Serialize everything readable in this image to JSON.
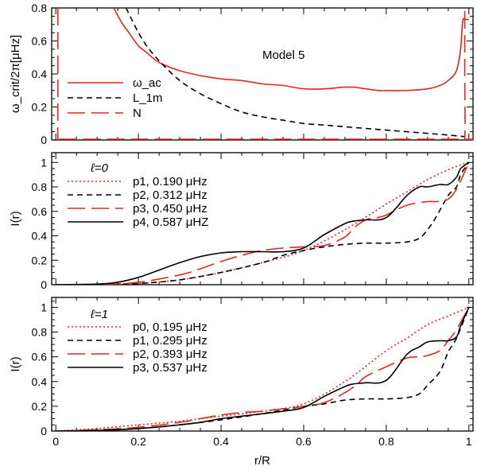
{
  "chart_data": [
    {
      "type": "line",
      "annotation": "Model 5",
      "ylabel": "ω_crit/2π[μHz]",
      "xlim": [
        -0.01,
        1.01
      ],
      "ylim": [
        0,
        0.8
      ],
      "yticks": [
        "0",
        "0.2",
        "0.4",
        "0.6",
        "0.8"
      ],
      "legend_location": "middle-left",
      "series": [
        {
          "name": "ω_ac",
          "color": "#e8251f",
          "dash": "solid",
          "x": [
            0.14,
            0.16,
            0.18,
            0.2,
            0.22,
            0.25,
            0.3,
            0.35,
            0.4,
            0.45,
            0.5,
            0.55,
            0.6,
            0.65,
            0.7,
            0.72,
            0.75,
            0.78,
            0.8,
            0.85,
            0.9,
            0.93,
            0.95,
            0.97,
            0.98,
            0.985,
            0.99,
            1.0
          ],
          "y": [
            0.8,
            0.71,
            0.64,
            0.57,
            0.53,
            0.47,
            0.42,
            0.39,
            0.37,
            0.36,
            0.34,
            0.33,
            0.31,
            0.31,
            0.32,
            0.32,
            0.31,
            0.3,
            0.3,
            0.3,
            0.31,
            0.33,
            0.36,
            0.42,
            0.55,
            0.72,
            0.73,
            0.73
          ]
        },
        {
          "name": "L_1m",
          "color": "#000000",
          "dash": "dashed",
          "x": [
            0.17,
            0.18,
            0.2,
            0.22,
            0.25,
            0.3,
            0.35,
            0.4,
            0.45,
            0.5,
            0.55,
            0.6,
            0.65,
            0.7,
            0.75,
            0.8,
            0.85,
            0.9,
            0.95,
            0.99
          ],
          "y": [
            0.8,
            0.75,
            0.65,
            0.57,
            0.48,
            0.36,
            0.28,
            0.22,
            0.17,
            0.14,
            0.12,
            0.1,
            0.09,
            0.08,
            0.07,
            0.06,
            0.05,
            0.04,
            0.03,
            0.02
          ]
        },
        {
          "name": "N",
          "color": "#e8251f",
          "dash": "longdash",
          "x": [
            0.005,
            0.005,
            0.005,
            0.01,
            0.98,
            0.99,
            0.99,
            0.99
          ],
          "y": [
            0.8,
            0.3,
            0.005,
            0.005,
            0.005,
            0.005,
            0.4,
            0.8
          ]
        }
      ]
    },
    {
      "type": "line",
      "annotation": "ℓ=0",
      "ylabel": "I(r)",
      "xlim": [
        -0.01,
        1.01
      ],
      "ylim": [
        0,
        1.08
      ],
      "yticks": [
        "0",
        "0.2",
        "0.4",
        "0.6",
        "0.8",
        "1"
      ],
      "legend_location": "top-left",
      "series": [
        {
          "name": "p1",
          "freq": "0.190",
          "unit": "μHz",
          "color": "#e8251f",
          "dash": "dotted",
          "x": [
            0,
            0.1,
            0.2,
            0.3,
            0.4,
            0.5,
            0.6,
            0.7,
            0.8,
            0.85,
            0.9,
            0.95,
            0.98,
            1.0
          ],
          "y": [
            0,
            0.001,
            0.01,
            0.04,
            0.1,
            0.18,
            0.28,
            0.45,
            0.66,
            0.76,
            0.86,
            0.94,
            0.98,
            1.0
          ]
        },
        {
          "name": "p2",
          "freq": "0.312",
          "unit": "μHz",
          "color": "#000000",
          "dash": "dashed",
          "x": [
            0,
            0.1,
            0.2,
            0.3,
            0.4,
            0.5,
            0.55,
            0.6,
            0.65,
            0.7,
            0.75,
            0.8,
            0.85,
            0.88,
            0.9,
            0.92,
            0.95,
            0.97,
            0.98,
            1.0
          ],
          "y": [
            0,
            0.001,
            0.01,
            0.04,
            0.1,
            0.18,
            0.24,
            0.28,
            0.31,
            0.33,
            0.34,
            0.34,
            0.35,
            0.38,
            0.45,
            0.55,
            0.73,
            0.8,
            0.9,
            1.0
          ]
        },
        {
          "name": "p3",
          "freq": "0.450",
          "unit": "μHz",
          "color": "#e8251f",
          "dash": "longdash",
          "x": [
            0,
            0.1,
            0.2,
            0.3,
            0.35,
            0.4,
            0.45,
            0.5,
            0.55,
            0.6,
            0.65,
            0.7,
            0.72,
            0.75,
            0.78,
            0.8,
            0.85,
            0.9,
            0.92,
            0.95,
            0.97,
            0.98,
            1.0
          ],
          "y": [
            0,
            0.002,
            0.02,
            0.08,
            0.13,
            0.19,
            0.24,
            0.28,
            0.3,
            0.31,
            0.32,
            0.39,
            0.46,
            0.53,
            0.55,
            0.57,
            0.65,
            0.68,
            0.68,
            0.7,
            0.78,
            0.85,
            1.0
          ]
        },
        {
          "name": "p4",
          "freq": "0.587",
          "unit": "μHZ",
          "color": "#000000",
          "dash": "solid",
          "x": [
            0,
            0.1,
            0.15,
            0.2,
            0.25,
            0.3,
            0.35,
            0.4,
            0.45,
            0.5,
            0.55,
            0.6,
            0.65,
            0.7,
            0.72,
            0.75,
            0.8,
            0.85,
            0.88,
            0.9,
            0.93,
            0.95,
            0.97,
            0.98,
            1.0
          ],
          "y": [
            0,
            0.005,
            0.02,
            0.06,
            0.12,
            0.18,
            0.23,
            0.26,
            0.27,
            0.27,
            0.27,
            0.3,
            0.41,
            0.5,
            0.52,
            0.53,
            0.55,
            0.73,
            0.8,
            0.8,
            0.82,
            0.82,
            0.88,
            0.95,
            1.0
          ]
        }
      ]
    },
    {
      "type": "line",
      "annotation": "ℓ=1",
      "xlabel": "r/R",
      "ylabel": "I(r)",
      "xlim": [
        -0.01,
        1.01
      ],
      "ylim": [
        0,
        1.08
      ],
      "xticks": [
        "0",
        "0.2",
        "0.4",
        "0.6",
        "0.8",
        "1"
      ],
      "yticks": [
        "0",
        "0.2",
        "0.4",
        "0.6",
        "0.8",
        "1"
      ],
      "legend_location": "top-left",
      "series": [
        {
          "name": "p0",
          "freq": "0.195",
          "unit": "μHz",
          "color": "#e8251f",
          "dash": "dotted",
          "x": [
            0,
            0.1,
            0.2,
            0.3,
            0.4,
            0.5,
            0.6,
            0.7,
            0.8,
            0.85,
            0.9,
            0.95,
            1.0
          ],
          "y": [
            0,
            0.02,
            0.05,
            0.08,
            0.12,
            0.16,
            0.22,
            0.4,
            0.65,
            0.75,
            0.86,
            0.93,
            1.0
          ]
        },
        {
          "name": "p1",
          "freq": "0.295",
          "unit": "μHz",
          "color": "#000000",
          "dash": "dashed",
          "x": [
            0,
            0.1,
            0.2,
            0.3,
            0.4,
            0.5,
            0.55,
            0.6,
            0.65,
            0.7,
            0.75,
            0.8,
            0.85,
            0.88,
            0.9,
            0.93,
            0.95,
            0.97,
            1.0
          ],
          "y": [
            0,
            0.005,
            0.02,
            0.05,
            0.09,
            0.14,
            0.17,
            0.2,
            0.22,
            0.25,
            0.26,
            0.26,
            0.27,
            0.3,
            0.37,
            0.48,
            0.64,
            0.75,
            1.0
          ]
        },
        {
          "name": "p2",
          "freq": "0.393",
          "unit": "μHz",
          "color": "#e8251f",
          "dash": "longdash",
          "x": [
            0,
            0.1,
            0.2,
            0.3,
            0.35,
            0.4,
            0.45,
            0.5,
            0.55,
            0.6,
            0.65,
            0.7,
            0.73,
            0.75,
            0.8,
            0.85,
            0.88,
            0.9,
            0.93,
            0.95,
            0.97,
            1.0
          ],
          "y": [
            0,
            0.01,
            0.03,
            0.07,
            0.1,
            0.13,
            0.15,
            0.16,
            0.18,
            0.2,
            0.23,
            0.31,
            0.38,
            0.44,
            0.52,
            0.59,
            0.6,
            0.61,
            0.65,
            0.73,
            0.82,
            1.0
          ]
        },
        {
          "name": "p3",
          "freq": "0.537",
          "unit": "μHz",
          "color": "#000000",
          "dash": "solid",
          "x": [
            0,
            0.1,
            0.2,
            0.3,
            0.35,
            0.4,
            0.45,
            0.5,
            0.55,
            0.6,
            0.65,
            0.7,
            0.72,
            0.75,
            0.8,
            0.85,
            0.88,
            0.9,
            0.93,
            0.95,
            0.97,
            0.98,
            1.0
          ],
          "y": [
            0,
            0.005,
            0.02,
            0.05,
            0.07,
            0.1,
            0.12,
            0.14,
            0.16,
            0.19,
            0.28,
            0.36,
            0.38,
            0.39,
            0.41,
            0.62,
            0.68,
            0.72,
            0.73,
            0.73,
            0.76,
            0.85,
            1.0
          ]
        }
      ]
    }
  ]
}
